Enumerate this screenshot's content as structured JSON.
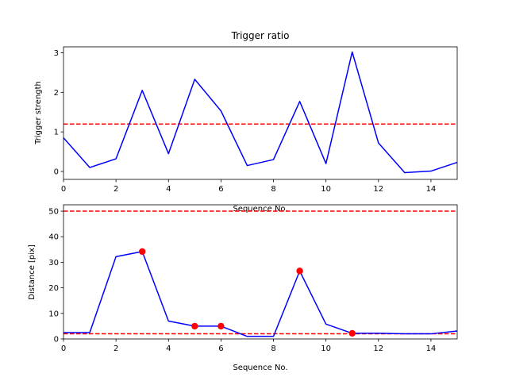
{
  "chart_data": [
    {
      "type": "line",
      "title": "Trigger ratio",
      "xlabel": "Sequence No.",
      "ylabel": "Trigger strength",
      "xlim": [
        0,
        15
      ],
      "ylim": [
        -0.2,
        3.15
      ],
      "x_ticks": [
        0,
        2,
        4,
        6,
        8,
        10,
        12,
        14
      ],
      "y_ticks": [
        0,
        1,
        2,
        3
      ],
      "series": [
        {
          "x": [
            0,
            1,
            2,
            3,
            4,
            5,
            6,
            7,
            8,
            9,
            10,
            11,
            12,
            13,
            14,
            15
          ],
          "values": [
            0.85,
            0.1,
            0.32,
            2.05,
            0.45,
            2.33,
            1.53,
            0.15,
            0.3,
            1.77,
            0.2,
            3.02,
            0.72,
            -0.03,
            0.01,
            0.23
          ],
          "color": "#0000ff"
        }
      ],
      "hlines": [
        {
          "y": 1.2,
          "color": "#ff0000",
          "style": "dashed"
        }
      ],
      "grid": false
    },
    {
      "type": "line",
      "title": "",
      "xlabel": "Sequence No.",
      "ylabel": "Distance [pix]",
      "xlim": [
        0,
        15
      ],
      "ylim": [
        0,
        52.5
      ],
      "x_ticks": [
        0,
        2,
        4,
        6,
        8,
        10,
        12,
        14
      ],
      "y_ticks": [
        0,
        10,
        20,
        30,
        40,
        50
      ],
      "series": [
        {
          "x": [
            0,
            1,
            2,
            3,
            4,
            5,
            6,
            7,
            8,
            9,
            10,
            11,
            12,
            13,
            14,
            15
          ],
          "values": [
            2.5,
            2.5,
            32.2,
            34.2,
            7.0,
            5.0,
            5.0,
            1.0,
            1.0,
            26.6,
            5.8,
            2.2,
            2.2,
            2.0,
            2.0,
            3.1
          ],
          "color": "#0000ff"
        }
      ],
      "markers": {
        "x": [
          3,
          5,
          6,
          9,
          11
        ],
        "values": [
          34.2,
          5.0,
          5.0,
          26.6,
          2.2
        ],
        "color": "#ff0000"
      },
      "hlines": [
        {
          "y": 50,
          "color": "#ff0000",
          "style": "dashed"
        },
        {
          "y": 2,
          "color": "#ff0000",
          "style": "dashed"
        }
      ],
      "grid": false
    }
  ]
}
